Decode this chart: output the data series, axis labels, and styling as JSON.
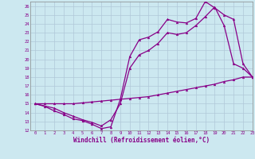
{
  "title": "",
  "xlabel": "Windchill (Refroidissement éolien,°C)",
  "ylabel": "",
  "background_color": "#cce8f0",
  "grid_color": "#b0c8d8",
  "line_color": "#880088",
  "xlim": [
    -0.5,
    23
  ],
  "ylim": [
    12,
    26.5
  ],
  "xticks": [
    0,
    1,
    2,
    3,
    4,
    5,
    6,
    7,
    8,
    9,
    10,
    11,
    12,
    13,
    14,
    15,
    16,
    17,
    18,
    19,
    20,
    21,
    22,
    23
  ],
  "yticks": [
    12,
    13,
    14,
    15,
    16,
    17,
    18,
    19,
    20,
    21,
    22,
    23,
    24,
    25,
    26
  ],
  "series": [
    {
      "x": [
        0,
        1,
        2,
        3,
        4,
        5,
        6,
        7,
        8,
        9,
        10,
        11,
        12,
        13,
        14,
        15,
        16,
        17,
        18,
        19,
        20,
        21,
        22,
        23
      ],
      "y": [
        15,
        14.7,
        14.2,
        13.8,
        13.3,
        13.1,
        12.7,
        12.2,
        12.4,
        15.5,
        20.3,
        22.2,
        22.5,
        23.1,
        24.5,
        24.2,
        24.1,
        24.6,
        26.5,
        25.8,
        25.0,
        24.5,
        19.5,
        18.0
      ]
    },
    {
      "x": [
        0,
        2,
        3,
        4,
        5,
        6,
        7,
        8,
        9,
        10,
        11,
        12,
        13,
        14,
        15,
        16,
        17,
        18,
        19,
        20,
        21,
        22,
        23
      ],
      "y": [
        15,
        14.5,
        14.0,
        13.6,
        13.2,
        12.9,
        12.5,
        13.2,
        15.0,
        19.0,
        20.5,
        21.0,
        21.8,
        23.0,
        22.8,
        23.0,
        23.8,
        24.8,
        25.9,
        23.8,
        19.5,
        19.0,
        18.0
      ]
    },
    {
      "x": [
        0,
        1,
        2,
        3,
        4,
        5,
        6,
        7,
        8,
        9,
        10,
        11,
        12,
        13,
        14,
        15,
        16,
        17,
        18,
        19,
        20,
        21,
        22,
        23
      ],
      "y": [
        15.0,
        15.0,
        15.0,
        15.0,
        15.0,
        15.1,
        15.2,
        15.3,
        15.4,
        15.5,
        15.6,
        15.7,
        15.8,
        16.0,
        16.2,
        16.4,
        16.6,
        16.8,
        17.0,
        17.2,
        17.5,
        17.7,
        18.0,
        18.0
      ]
    }
  ]
}
